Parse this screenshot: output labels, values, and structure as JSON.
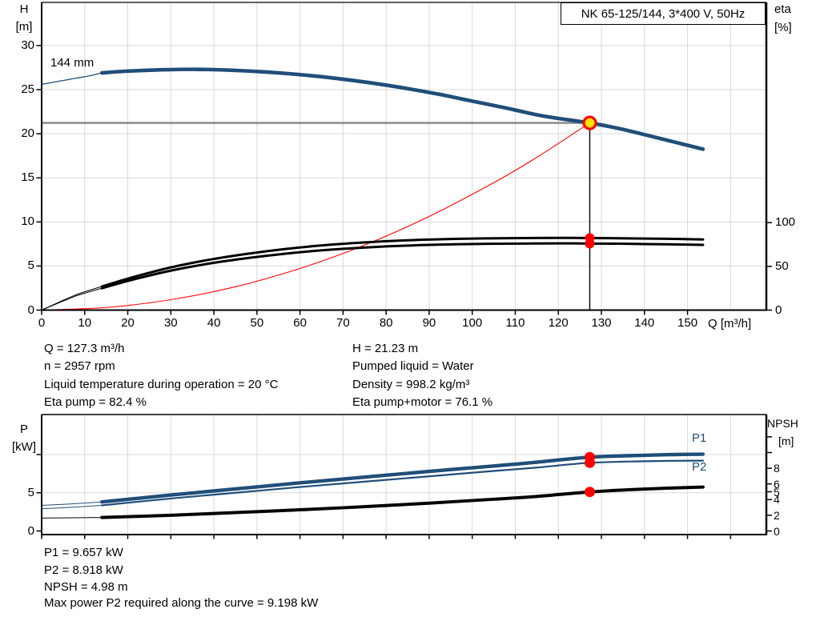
{
  "title_box": {
    "label": "NK 65-125/144, 3*400 V, 50Hz"
  },
  "top_chart": {
    "impeller_label": "144 mm",
    "y_left": {
      "name": "H",
      "unit": "[m]",
      "ticks": [
        30,
        25,
        20,
        15,
        10,
        5,
        0
      ]
    },
    "y_right": {
      "name": "eta",
      "unit": "[%]",
      "ticks": [
        100,
        50,
        0
      ]
    },
    "x_axis": {
      "ticks": [
        0,
        10,
        20,
        30,
        40,
        50,
        60,
        70,
        80,
        90,
        100,
        110,
        120,
        130,
        140,
        150
      ],
      "unit_label": "Q [m³/h]"
    }
  },
  "bottom_chart": {
    "y_left": {
      "name": "P",
      "unit": "[kW]",
      "ticks": [
        5,
        0
      ],
      "unlabeled_ticks": [
        10
      ]
    },
    "y_right": {
      "name": "NPSH",
      "unit": "[m]",
      "ticks": [
        8,
        6,
        5,
        4,
        2,
        0
      ],
      "unlabeled_ticks": [
        12,
        10
      ]
    },
    "p1_label": "P1",
    "p2_label": "P2"
  },
  "duty_info_top": {
    "left": [
      "Q = 127.3 m³/h",
      "n = 2957 rpm",
      "Liquid temperature during operation = 20 °C",
      "Eta pump = 82.4 %"
    ],
    "right": [
      "H = 21.23 m",
      "Pumped liquid = Water",
      "Density = 998.2 kg/m³",
      "Eta pump+motor = 76.1 %"
    ]
  },
  "duty_info_bottom": [
    "P1 = 9.657 kW",
    "P2 = 8.918 kW",
    "NPSH = 4.98 m",
    "Max power P2 required along the curve = 9.198 kW"
  ],
  "colors": {
    "curve_blue": "#1F4E79",
    "marker_red": "#FF0000",
    "marker_yellow": "#FFE600",
    "grid": "#D9D9D9",
    "duty_guide_gray": "#8F8F8F",
    "axis_black": "#000000"
  },
  "chart_data": [
    {
      "type": "line",
      "chart": "head-and-efficiency",
      "title": "NK 65-125/144, 3*400 V, 50Hz",
      "xlabel": "Q [m³/h]",
      "ylabel_left": "H [m]",
      "ylabel_right": "eta [%]",
      "xlim": [
        0,
        168
      ],
      "ylim_left": [
        0,
        35
      ],
      "x_ticks": [
        0,
        10,
        20,
        30,
        40,
        50,
        60,
        70,
        80,
        90,
        100,
        110,
        120,
        130,
        140,
        150
      ],
      "grid_x_step": 10,
      "grid_x_max": 160,
      "y_left_ticks": [
        0,
        5,
        10,
        15,
        20,
        25,
        30
      ],
      "y_right_ticks": [
        0,
        50,
        100
      ],
      "series": [
        {
          "name": "duty-parabola",
          "axis": "H",
          "color": "#FF0000",
          "w": 1.1,
          "points": [
            [
              0,
              0
            ],
            [
              15,
              0.295
            ],
            [
              30,
              1.18
            ],
            [
              45,
              2.65
            ],
            [
              60,
              4.72
            ],
            [
              75,
              7.37
            ],
            [
              90,
              10.62
            ],
            [
              105,
              14.45
            ],
            [
              115,
              17.32
            ],
            [
              127.3,
              21.23
            ]
          ]
        },
        {
          "name": "eta-pump-motor-curve",
          "axis": "eta",
          "color": "#000000",
          "w_thin": 1.0,
          "w": 3.0,
          "split_q": 14,
          "points": [
            [
              0,
              0
            ],
            [
              4,
              8.3
            ],
            [
              8,
              16.2
            ],
            [
              11,
              20.8
            ],
            [
              14,
              25
            ],
            [
              20,
              33.3
            ],
            [
              26,
              40.7
            ],
            [
              32,
              47.1
            ],
            [
              40,
              54.1
            ],
            [
              48,
              59.6
            ],
            [
              56,
              64.2
            ],
            [
              64,
              67.9
            ],
            [
              72,
              70.7
            ],
            [
              80,
              72.8
            ],
            [
              88,
              74.3
            ],
            [
              96,
              75.2
            ],
            [
              104,
              75.8
            ],
            [
              112,
              76.1
            ],
            [
              120,
              76.3
            ],
            [
              127.3,
              76.1
            ],
            [
              136,
              75.8
            ],
            [
              145,
              75.2
            ],
            [
              153.6,
              74.6
            ]
          ]
        },
        {
          "name": "eta-pump-curve",
          "axis": "eta",
          "color": "#000000",
          "w_thin": 1.0,
          "w": 3.0,
          "split_q": 14,
          "points": [
            [
              0,
              0
            ],
            [
              4,
              9
            ],
            [
              8,
              17.5
            ],
            [
              11,
              22.5
            ],
            [
              14,
              27
            ],
            [
              20,
              36
            ],
            [
              26,
              44
            ],
            [
              32,
              51
            ],
            [
              40,
              58.5
            ],
            [
              48,
              64.5
            ],
            [
              56,
              69.5
            ],
            [
              64,
              73.5
            ],
            [
              72,
              76.5
            ],
            [
              80,
              78.8
            ],
            [
              88,
              80.4
            ],
            [
              96,
              81.4
            ],
            [
              104,
              82
            ],
            [
              112,
              82.4
            ],
            [
              120,
              82.6
            ],
            [
              127.3,
              82.4
            ],
            [
              136,
              82
            ],
            [
              145,
              81.5
            ],
            [
              153.6,
              80.8
            ]
          ]
        },
        {
          "name": "head-curve-144mm",
          "label": "144 mm",
          "axis": "H",
          "color": "#1F4E79",
          "w_thin": 1.3,
          "w": 4.6,
          "split_q": 14,
          "points": [
            [
              0,
              25.6
            ],
            [
              4,
              25.95
            ],
            [
              8,
              26.3
            ],
            [
              11,
              26.55
            ],
            [
              14,
              26.9
            ],
            [
              20,
              27.1
            ],
            [
              28,
              27.25
            ],
            [
              36,
              27.3
            ],
            [
              44,
              27.2
            ],
            [
              52,
              27.0
            ],
            [
              60,
              26.7
            ],
            [
              68,
              26.3
            ],
            [
              76,
              25.8
            ],
            [
              84,
              25.2
            ],
            [
              92,
              24.5
            ],
            [
              100,
              23.7
            ],
            [
              108,
              22.9
            ],
            [
              116,
              22.05
            ],
            [
              122,
              21.6
            ],
            [
              127.3,
              21.23
            ],
            [
              134,
              20.6
            ],
            [
              140,
              19.9
            ],
            [
              147,
              19.05
            ],
            [
              153.6,
              18.25
            ]
          ]
        }
      ],
      "duty_point": {
        "Q": 127.3,
        "H": 21.23,
        "eta_pump": 82.4,
        "eta_pump_motor": 76.1
      }
    },
    {
      "type": "line",
      "chart": "power-and-npsh",
      "xlabel": "Q [m³/h]",
      "ylabel_left": "P [kW]",
      "ylabel_right": "NPSH [m]",
      "xlim": [
        0,
        168
      ],
      "grid_x_step": 10,
      "grid_x_max": 160,
      "y_left_ticks": [
        0,
        5,
        10
      ],
      "y_right_ticks": [
        0,
        2,
        4,
        5,
        6,
        8,
        10,
        12
      ],
      "series": [
        {
          "name": "npsh-curve",
          "axis": "NPSH",
          "color": "#000000",
          "w_thin": 1.0,
          "w": 4.0,
          "split_q": 14,
          "points": [
            [
              0,
              1.65
            ],
            [
              7,
              1.68
            ],
            [
              14,
              1.72
            ],
            [
              30,
              2.0
            ],
            [
              45,
              2.35
            ],
            [
              60,
              2.7
            ],
            [
              75,
              3.1
            ],
            [
              90,
              3.55
            ],
            [
              105,
              4.05
            ],
            [
              115,
              4.4
            ],
            [
              127.3,
              4.98
            ],
            [
              140,
              5.35
            ],
            [
              153.6,
              5.6
            ]
          ]
        },
        {
          "name": "p2-curve",
          "label": "P2",
          "axis": "P",
          "color": "#1F4E79",
          "w_thin": 1.0,
          "w": 2.2,
          "split_q": 14,
          "points": [
            [
              0,
              2.9
            ],
            [
              7,
              3.1
            ],
            [
              14,
              3.35
            ],
            [
              30,
              4.25
            ],
            [
              45,
              5.0
            ],
            [
              60,
              5.75
            ],
            [
              75,
              6.45
            ],
            [
              90,
              7.15
            ],
            [
              105,
              7.85
            ],
            [
              115,
              8.3
            ],
            [
              127.3,
              8.918
            ],
            [
              140,
              9.12
            ],
            [
              147,
              9.18
            ],
            [
              153.6,
              9.198
            ]
          ]
        },
        {
          "name": "p1-curve",
          "label": "P1",
          "axis": "P",
          "color": "#1F4E79",
          "w_thin": 1.0,
          "w": 4.4,
          "split_q": 14,
          "points": [
            [
              0,
              3.35
            ],
            [
              7,
              3.55
            ],
            [
              14,
              3.8
            ],
            [
              30,
              4.7
            ],
            [
              45,
              5.5
            ],
            [
              60,
              6.3
            ],
            [
              75,
              7.05
            ],
            [
              90,
              7.8
            ],
            [
              105,
              8.5
            ],
            [
              115,
              9.0
            ],
            [
              127.3,
              9.657
            ],
            [
              140,
              9.9
            ],
            [
              147,
              10.0
            ],
            [
              153.6,
              10.05
            ]
          ]
        }
      ],
      "duty_point": {
        "Q": 127.3,
        "P1": 9.657,
        "P2": 8.918,
        "NPSH": 4.98
      }
    }
  ]
}
